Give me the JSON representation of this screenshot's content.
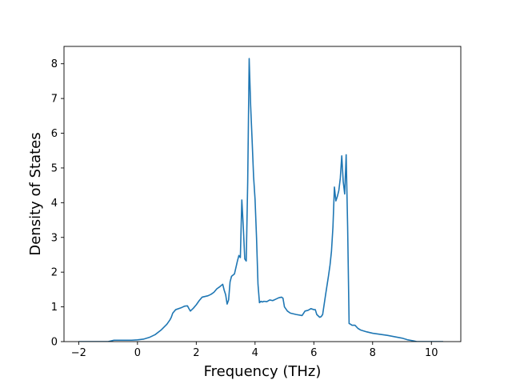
{
  "chart_data": {
    "type": "line",
    "title": "",
    "xlabel": "Frequency (THz)",
    "ylabel": "Density of States",
    "xlim": [
      -2.5,
      11.0
    ],
    "ylim": [
      0,
      8.5
    ],
    "x_ticks": [
      -2,
      0,
      2,
      4,
      6,
      8,
      10
    ],
    "y_ticks": [
      0,
      1,
      2,
      3,
      4,
      5,
      6,
      7,
      8
    ],
    "x_tick_labels": [
      "−2",
      "0",
      "2",
      "4",
      "6",
      "8",
      "10"
    ],
    "y_tick_labels": [
      "0",
      "1",
      "2",
      "3",
      "4",
      "5",
      "6",
      "7",
      "8"
    ],
    "grid": false,
    "legend": "none",
    "series": [
      {
        "color": "#1f77b4",
        "x": [
          -2.0,
          -1.5,
          -1.0,
          -0.8,
          -0.6,
          -0.4,
          -0.2,
          0.0,
          0.2,
          0.4,
          0.6,
          0.8,
          1.0,
          1.1,
          1.15,
          1.2,
          1.3,
          1.5,
          1.6,
          1.7,
          1.75,
          1.8,
          1.9,
          2.0,
          2.1,
          2.2,
          2.3,
          2.4,
          2.5,
          2.6,
          2.7,
          2.8,
          2.9,
          2.95,
          3.0,
          3.05,
          3.1,
          3.15,
          3.2,
          3.3,
          3.4,
          3.45,
          3.5,
          3.55,
          3.6,
          3.65,
          3.7,
          3.75,
          3.8,
          3.85,
          3.9,
          3.95,
          4.0,
          4.05,
          4.1,
          4.15,
          4.2,
          4.25,
          4.3,
          4.4,
          4.5,
          4.6,
          4.7,
          4.8,
          4.9,
          4.95,
          5.0,
          5.1,
          5.2,
          5.4,
          5.6,
          5.7,
          5.8,
          5.9,
          6.0,
          6.05,
          6.1,
          6.2,
          6.25,
          6.3,
          6.4,
          6.5,
          6.55,
          6.6,
          6.65,
          6.7,
          6.75,
          6.8,
          6.85,
          6.9,
          6.95,
          7.0,
          7.05,
          7.1,
          7.15,
          7.2,
          7.25,
          7.3,
          7.4,
          7.5,
          7.6,
          7.8,
          8.0,
          8.5,
          9.0,
          9.2,
          9.4,
          9.5,
          10.0,
          10.4
        ],
        "y": [
          0.0,
          0.0,
          0.0,
          0.04,
          0.04,
          0.04,
          0.04,
          0.05,
          0.07,
          0.12,
          0.2,
          0.33,
          0.5,
          0.62,
          0.7,
          0.82,
          0.92,
          0.98,
          1.02,
          1.03,
          0.95,
          0.88,
          0.96,
          1.06,
          1.18,
          1.28,
          1.3,
          1.32,
          1.36,
          1.42,
          1.52,
          1.58,
          1.65,
          1.48,
          1.35,
          1.08,
          1.2,
          1.72,
          1.88,
          1.95,
          2.32,
          2.48,
          2.42,
          4.08,
          3.3,
          2.38,
          2.32,
          4.6,
          8.15,
          6.8,
          5.8,
          4.75,
          4.1,
          3.0,
          1.65,
          1.12,
          1.16,
          1.14,
          1.16,
          1.15,
          1.2,
          1.18,
          1.22,
          1.26,
          1.28,
          1.25,
          1.0,
          0.88,
          0.82,
          0.78,
          0.75,
          0.88,
          0.9,
          0.95,
          0.92,
          0.92,
          0.78,
          0.7,
          0.72,
          0.78,
          1.35,
          1.9,
          2.2,
          2.6,
          3.3,
          4.45,
          4.05,
          4.18,
          4.35,
          4.7,
          5.35,
          4.6,
          4.25,
          5.38,
          3.3,
          0.52,
          0.5,
          0.47,
          0.47,
          0.38,
          0.33,
          0.28,
          0.24,
          0.18,
          0.1,
          0.05,
          0.02,
          0.0,
          0.0,
          0.0
        ]
      }
    ]
  }
}
